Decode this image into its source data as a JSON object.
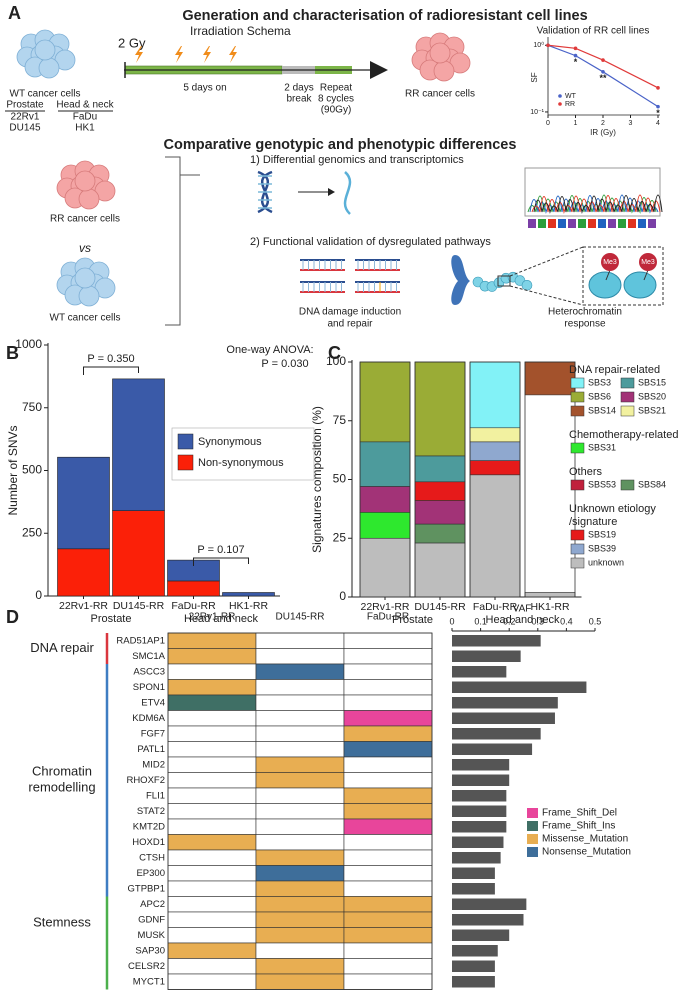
{
  "panel_labels": [
    "A",
    "B",
    "C",
    "D"
  ],
  "panel_a": {
    "title": "Generation and characterisation of radioresistant cell lines",
    "wt_cells": "WT cancer cells",
    "prostate": "Prostate",
    "head_neck": "Head & neck",
    "lines_prostate": [
      "22Rv1",
      "DU145"
    ],
    "lines_hn": [
      "FaDu",
      "HK1"
    ],
    "dose": "2 Gy",
    "schema": "Irradiation Schema",
    "days_on": "5 days on",
    "days_break": [
      "2 days",
      "break"
    ],
    "repeat": [
      "Repeat",
      "8 cycles",
      "(90Gy)"
    ],
    "rr_cells": "RR cancer cells",
    "subtitle": "Comparative genotypic and phenotypic differences",
    "rr_cells_2": "RR cancer cells",
    "vs": "vs",
    "wt_cells_2": "WT cancer cells",
    "step1": "1) Differential genomics and transcriptomics",
    "step2": "2) Functional validation of dysregulated pathways",
    "dna_damage": [
      "DNA damage induction",
      "and repair"
    ],
    "heterochromatin": [
      "Heterochromatin",
      "response"
    ],
    "me3": [
      "Me3",
      "Me3"
    ]
  },
  "chart_data": [
    {
      "type": "line",
      "title": "Validation of RR cell lines",
      "x_label": "IR (Gy)",
      "y_label": "SF",
      "x": [
        0,
        1,
        2,
        4
      ],
      "series": [
        {
          "name": "WT",
          "color": "#4a63c8",
          "values": [
            1,
            0.7,
            0.4,
            0.12
          ]
        },
        {
          "name": "RR",
          "color": "#e03a3a",
          "values": [
            1,
            0.9,
            0.6,
            0.23
          ]
        }
      ],
      "xlim": [
        0,
        4
      ],
      "xticks": [
        0,
        1,
        2,
        3,
        4
      ],
      "ylim": [
        0.09,
        1.2
      ],
      "log_y": true,
      "yticks": [
        {
          "value": 0.1,
          "label": "10⁻¹"
        },
        {
          "value": 1,
          "label": "10⁰"
        }
      ],
      "annotations": [
        "*",
        "**",
        "*"
      ]
    },
    {
      "type": "stacked_bar",
      "y_label": "Number of SNVs",
      "categories": [
        "22Rv1-RR",
        "DU145-RR",
        "FaDu-RR",
        "HK1-RR"
      ],
      "category_groups": [
        {
          "label": "Prostate",
          "span": 2
        },
        {
          "label": "Head and neck",
          "span": 2
        }
      ],
      "series": [
        {
          "name": "Non-synonymous",
          "color": "#fb2008",
          "values": [
            188,
            340,
            60,
            0
          ]
        },
        {
          "name": "Synonymous",
          "color": "#3a5aa8",
          "values": [
            365,
            525,
            83,
            14
          ]
        }
      ],
      "ylim": [
        0,
        1000
      ],
      "yticks": [
        0,
        250,
        500,
        750,
        1000
      ],
      "annotations": [
        "P = 0.350",
        "P = 0.107",
        "One-way ANOVA:",
        "P = 0.030"
      ]
    },
    {
      "type": "stacked_percent",
      "y_label": "Signatures composition (%)",
      "categories": [
        "22Rv1-RR",
        "DU145-RR",
        "FaDu-RR",
        "HK1-RR"
      ],
      "category_groups": [
        {
          "label": "Prostate",
          "span": 2
        },
        {
          "label": "Head and neck",
          "span": 2
        }
      ],
      "series": [
        {
          "name": "unknown",
          "color": "#bdbdbd",
          "values": [
            25,
            23,
            52,
            2
          ]
        },
        {
          "name": "SBS84",
          "color": "#5f9260",
          "values": [
            0,
            8,
            0,
            0
          ]
        },
        {
          "name": "SBS31",
          "color": "#2ee82e",
          "values": [
            11,
            0,
            0,
            0
          ]
        },
        {
          "name": "SBS20",
          "color": "#a23377",
          "values": [
            11,
            10,
            0,
            0
          ]
        },
        {
          "name": "SBS19",
          "color": "#e61a1a",
          "values": [
            0,
            8,
            6,
            0
          ]
        },
        {
          "name": "SBS39",
          "color": "#8fa8cf",
          "values": [
            0,
            0,
            8,
            0
          ]
        },
        {
          "name": "SBS15",
          "color": "#4d9b9c",
          "values": [
            19,
            11,
            0,
            0
          ]
        },
        {
          "name": "SBS21",
          "color": "#f2f1a0",
          "values": [
            0,
            0,
            6,
            0
          ]
        },
        {
          "name": "SBS6",
          "color": "#9aac36",
          "values": [
            34,
            40,
            0,
            0
          ]
        },
        {
          "name": "SBS3",
          "color": "#82f2f7",
          "values": [
            0,
            0,
            28,
            0
          ]
        },
        {
          "name": "SBS53",
          "color": "#c0203c",
          "values": [
            0,
            0,
            0,
            0
          ]
        },
        {
          "name": "SBS14",
          "color": "#a3522c",
          "values": [
            0,
            0,
            0,
            14
          ]
        }
      ],
      "legend_groups": [
        {
          "title": "DNA repair-related",
          "members": [
            9,
            6,
            8,
            3,
            11,
            7
          ]
        },
        {
          "title": "Chemotherapy-related",
          "members": [
            2
          ]
        },
        {
          "title": "Others",
          "members": [
            10,
            1
          ]
        },
        {
          "title": [
            "Unknown etiology",
            "/signature"
          ],
          "members": [
            4,
            5,
            0
          ]
        }
      ],
      "ylim": [
        0,
        100
      ],
      "yticks": [
        0,
        25,
        50,
        75,
        100
      ]
    },
    {
      "type": "mutation_matrix",
      "columns": [
        "22Rv1-RR",
        "DU145-RR",
        "FaDu-RR"
      ],
      "mutation_types": [
        {
          "name": "Frame_Shift_Del",
          "color": "#e8459b"
        },
        {
          "name": "Frame_Shift_Ins",
          "color": "#3f6f65"
        },
        {
          "name": "Missense_Mutation",
          "color": "#e8ae52"
        },
        {
          "name": "Nonsense_Mutation",
          "color": "#3e6e9a"
        }
      ],
      "groups": [
        {
          "name": [
            "DNA repair"
          ],
          "color": "#d9363e",
          "rows": [
            {
              "gene": "RAD51AP1",
              "mutations": [
                "Missense_Mutation",
                null,
                null
              ],
              "vaf": 0.31
            },
            {
              "gene": "SMC1A",
              "mutations": [
                "Missense_Mutation",
                null,
                null
              ],
              "vaf": 0.24
            }
          ]
        },
        {
          "name": [
            "Chromatin",
            "remodelling"
          ],
          "color": "#3e7dc2",
          "rows": [
            {
              "gene": "ASCC3",
              "mutations": [
                null,
                "Nonsense_Mutation",
                null
              ],
              "vaf": 0.19
            },
            {
              "gene": "SPON1",
              "mutations": [
                "Missense_Mutation",
                null,
                null
              ],
              "vaf": 0.47
            },
            {
              "gene": "ETV4",
              "mutations": [
                "Frame_Shift_Ins",
                null,
                null
              ],
              "vaf": 0.37
            },
            {
              "gene": "KDM6A",
              "mutations": [
                null,
                null,
                "Frame_Shift_Del"
              ],
              "vaf": 0.36
            },
            {
              "gene": "FGF7",
              "mutations": [
                null,
                null,
                "Missense_Mutation"
              ],
              "vaf": 0.31
            },
            {
              "gene": "PATL1",
              "mutations": [
                null,
                null,
                "Nonsense_Mutation"
              ],
              "vaf": 0.28
            },
            {
              "gene": "MID2",
              "mutations": [
                null,
                "Missense_Mutation",
                null
              ],
              "vaf": 0.2
            },
            {
              "gene": "RHOXF2",
              "mutations": [
                null,
                "Missense_Mutation",
                null
              ],
              "vaf": 0.2
            },
            {
              "gene": "FLI1",
              "mutations": [
                null,
                null,
                "Missense_Mutation"
              ],
              "vaf": 0.19
            },
            {
              "gene": "STAT2",
              "mutations": [
                null,
                null,
                "Missense_Mutation"
              ],
              "vaf": 0.19
            },
            {
              "gene": "KMT2D",
              "mutations": [
                null,
                null,
                "Frame_Shift_Del"
              ],
              "vaf": 0.19
            },
            {
              "gene": "HOXD1",
              "mutations": [
                "Missense_Mutation",
                null,
                null
              ],
              "vaf": 0.18
            },
            {
              "gene": "CTSH",
              "mutations": [
                null,
                "Missense_Mutation",
                null
              ],
              "vaf": 0.17
            },
            {
              "gene": "EP300",
              "mutations": [
                null,
                "Nonsense_Mutation",
                null
              ],
              "vaf": 0.15
            },
            {
              "gene": "GTPBP1",
              "mutations": [
                null,
                "Missense_Mutation",
                null
              ],
              "vaf": 0.15
            }
          ]
        },
        {
          "name": [
            "Stemness"
          ],
          "color": "#4cb04c",
          "rows": [
            {
              "gene": "APC2",
              "mutations": [
                null,
                "Missense_Mutation",
                "Missense_Mutation"
              ],
              "vaf": 0.26
            },
            {
              "gene": "GDNF",
              "mutations": [
                null,
                "Missense_Mutation",
                "Missense_Mutation"
              ],
              "vaf": 0.25
            },
            {
              "gene": "MUSK",
              "mutations": [
                null,
                "Missense_Mutation",
                "Missense_Mutation"
              ],
              "vaf": 0.2
            },
            {
              "gene": "SAP30",
              "mutations": [
                "Missense_Mutation",
                null,
                null
              ],
              "vaf": 0.16
            },
            {
              "gene": "CELSR2",
              "mutations": [
                null,
                "Missense_Mutation",
                null
              ],
              "vaf": 0.15
            },
            {
              "gene": "MYCT1",
              "mutations": [
                null,
                "Missense_Mutation",
                null
              ],
              "vaf": 0.15
            }
          ]
        }
      ],
      "vaf_label": "VAF",
      "vaf_color": "#555555",
      "xlim": [
        0,
        0.5
      ],
      "xticks": [
        0,
        0.1,
        0.2,
        0.3,
        0.4,
        0.5
      ]
    }
  ]
}
